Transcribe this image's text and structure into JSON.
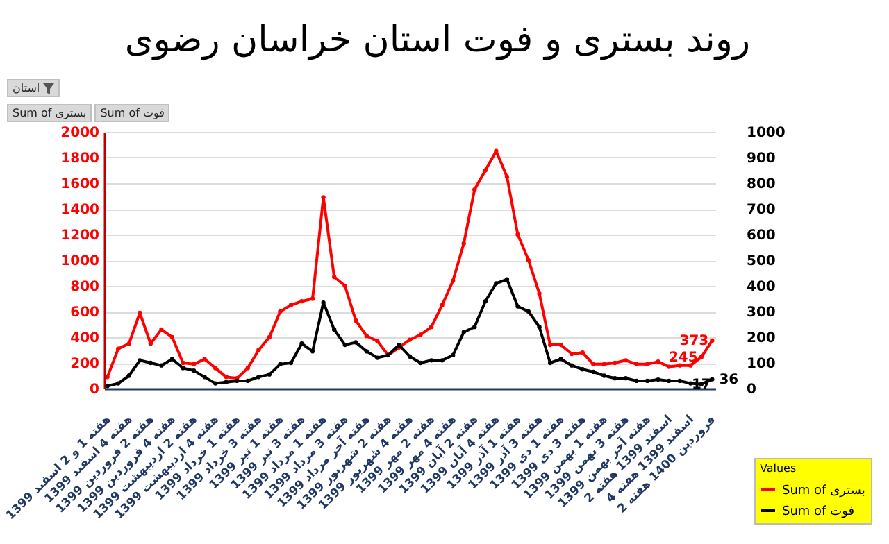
{
  "chart_data": {
    "type": "line",
    "title": "روند بستری و فوت استان خراسان رضوی",
    "categories": [
      "هفته 1 و 2 اسفند 1399",
      null,
      "هفته 4 اسفند 1399",
      null,
      "هفته 2 فروردین 1399",
      null,
      "هفته 4 فروردین 1399",
      null,
      "هفته 2 اردیبهشت 1399",
      null,
      "هفته 4 اردیبهشت 1399",
      null,
      "هفته 1 خرداد 1399",
      null,
      "هفته 3 خرداد 1399",
      null,
      "هفته 1 تیر 1399",
      null,
      "هفته 3 تیر 1399",
      null,
      "هفته 1 مرداد 1399",
      null,
      "هفته 3 مرداد 1399",
      null,
      "هفته آخر مرداد 1399",
      null,
      "هفته 2 شهریور 1399",
      null,
      "هفته 4 شهریور 1399",
      null,
      "هفته 2 مهر 1399",
      null,
      "هفته 4 مهر 1399",
      null,
      "هفته 2 آبان 1399",
      null,
      "هفته 4 آبان 1399",
      null,
      "هفته 1 آذر 1399",
      null,
      "هفته 3 آذر 1399",
      null,
      "هفته 1 دی 1399",
      null,
      "هفته 3 دی 1399",
      null,
      "هفته 1 بهمن 1399",
      null,
      "هفته 3 بهمن 1399",
      null,
      "هفته آخر بهمن 1399",
      null,
      "اسفند 1399 هفته 2",
      null,
      "اسفند 1399 هفته 4",
      null,
      "فروردین 1400 هفته 2"
    ],
    "series": [
      {
        "name": "Sum of بستری",
        "color": "#ff0000",
        "values": [
          90,
          310,
          350,
          590,
          350,
          460,
          400,
          200,
          190,
          230,
          160,
          90,
          80,
          160,
          300,
          400,
          600,
          650,
          680,
          700,
          1490,
          870,
          800,
          530,
          410,
          370,
          260,
          320,
          380,
          420,
          480,
          650,
          840,
          1130,
          1550,
          1700,
          1850,
          1650,
          1200,
          1000,
          740,
          340,
          340,
          270,
          280,
          190,
          190,
          200,
          220,
          190,
          190,
          210,
          170,
          180,
          180,
          245,
          373
        ],
        "value_labels": [
          null,
          null,
          null,
          null,
          null,
          null,
          null,
          null,
          null,
          null,
          null,
          null,
          null,
          null,
          null,
          null,
          null,
          null,
          null,
          null,
          null,
          null,
          null,
          null,
          null,
          null,
          null,
          null,
          null,
          null,
          null,
          null,
          null,
          null,
          null,
          null,
          null,
          null,
          null,
          null,
          null,
          null,
          null,
          null,
          null,
          null,
          null,
          null,
          null,
          null,
          null,
          null,
          null,
          null,
          null,
          "245",
          "373"
        ]
      },
      {
        "name": "Sum of فوت",
        "color": "#000000",
        "axis": "y2",
        "values": [
          10,
          20,
          50,
          110,
          100,
          90,
          115,
          80,
          70,
          45,
          20,
          25,
          30,
          30,
          45,
          55,
          95,
          100,
          175,
          145,
          335,
          230,
          170,
          180,
          145,
          120,
          130,
          170,
          125,
          100,
          110,
          110,
          130,
          220,
          240,
          340,
          410,
          425,
          320,
          300,
          240,
          100,
          115,
          90,
          75,
          65,
          50,
          40,
          40,
          30,
          30,
          35,
          30,
          30,
          20,
          17,
          36
        ],
        "value_labels": [
          null,
          null,
          null,
          null,
          null,
          null,
          null,
          null,
          null,
          null,
          null,
          null,
          null,
          null,
          null,
          null,
          null,
          null,
          null,
          null,
          null,
          null,
          null,
          null,
          null,
          null,
          null,
          null,
          null,
          null,
          null,
          null,
          null,
          null,
          null,
          null,
          null,
          null,
          null,
          null,
          null,
          null,
          null,
          null,
          null,
          null,
          null,
          null,
          null,
          null,
          null,
          null,
          null,
          null,
          null,
          "17",
          "36"
        ]
      }
    ],
    "ylim": [
      0,
      2000
    ],
    "yticks": [
      0,
      200,
      400,
      600,
      800,
      1000,
      1200,
      1400,
      1600,
      1800,
      2000
    ],
    "y2lim": [
      0,
      1000
    ],
    "y2ticks": [
      0,
      100,
      200,
      300,
      400,
      500,
      600,
      700,
      800,
      900,
      1000
    ],
    "grid": "y",
    "legend": "bottom right",
    "legend_title": "Values",
    "marker": "circle",
    "line_style": "solid",
    "annotations": [
      "استان",
      "Sum of بستری",
      "Sum of فوت"
    ]
  }
}
